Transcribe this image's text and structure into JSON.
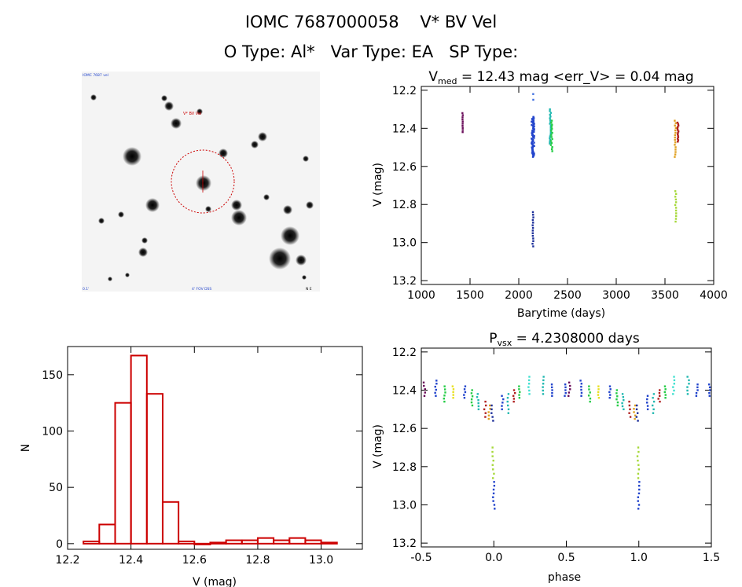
{
  "header": {
    "title": "IOMC 7687000058    V* BV Vel",
    "subtitle": "O Type: Al*   Var Type: EA   SP Type:"
  },
  "finding_chart": {
    "corner_top_left": "IOMC 7687 vel",
    "marker_label": "V* BV Vel",
    "bottom_left": "0.1'",
    "bottom_center": "4' FOV DSS",
    "bottom_right": "N E"
  },
  "chart_data": [
    {
      "id": "lightcurve",
      "type": "scatter",
      "title": "V_med = 12.43 mag <err_V> = 0.04 mag",
      "title_parts": {
        "main": "V",
        "sub": "med",
        "rest": " = 12.43 mag <err_V> = 0.04 mag"
      },
      "xlabel": "Barytime (days)",
      "ylabel": "V (mag)",
      "xlim": [
        1000,
        4000
      ],
      "ylim": [
        13.22,
        12.18
      ],
      "y_inverted": true,
      "xticks": [
        "1000",
        "1500",
        "2000",
        "2500",
        "3000",
        "3500",
        "4000"
      ],
      "yticks": [
        "12.2",
        "12.4",
        "12.6",
        "12.8",
        "13.0",
        "13.2"
      ],
      "series": [
        {
          "color": "#6a0d5a",
          "x_start": 1422,
          "x_end": 1426,
          "y_min": 12.32,
          "y_max": 12.42,
          "n": 10
        },
        {
          "color": "#2244cc",
          "x_start": 2130,
          "x_end": 2160,
          "y_min": 12.34,
          "y_max": 12.55,
          "n": 60
        },
        {
          "color": "#1d2f9a",
          "x_start": 2140,
          "x_end": 2150,
          "y_min": 12.84,
          "y_max": 13.02,
          "n": 14
        },
        {
          "color": "#3f6fe0",
          "x_start": 2148,
          "x_end": 2150,
          "y_min": 12.22,
          "y_max": 12.25,
          "n": 2
        },
        {
          "color": "#20b8b0",
          "x_start": 2318,
          "x_end": 2330,
          "y_min": 12.3,
          "y_max": 12.48,
          "n": 20
        },
        {
          "color": "#22cc44",
          "x_start": 2330,
          "x_end": 2345,
          "y_min": 12.36,
          "y_max": 12.52,
          "n": 16
        },
        {
          "color": "#e0a020",
          "x_start": 3600,
          "x_end": 3612,
          "y_min": 12.36,
          "y_max": 12.55,
          "n": 16
        },
        {
          "color": "#a6d83a",
          "x_start": 3605,
          "x_end": 3615,
          "y_min": 12.73,
          "y_max": 12.89,
          "n": 12
        },
        {
          "color": "#b02020",
          "x_start": 3625,
          "x_end": 3640,
          "y_min": 12.37,
          "y_max": 12.47,
          "n": 14
        }
      ]
    },
    {
      "id": "histogram",
      "type": "bar",
      "xlabel": "V (mag)",
      "ylabel": "N",
      "xlim": [
        12.2,
        13.13
      ],
      "ylim": [
        -5,
        175
      ],
      "xticks": [
        "12.2",
        "12.4",
        "12.6",
        "12.8",
        "13.0"
      ],
      "yticks": [
        "0",
        "50",
        "100",
        "150"
      ],
      "bin_edges": [
        12.25,
        12.3,
        12.35,
        12.4,
        12.45,
        12.5,
        12.55,
        12.6,
        12.65,
        12.7,
        12.75,
        12.8,
        12.85,
        12.9,
        12.95,
        13.0,
        13.05
      ],
      "values": [
        2,
        17,
        125,
        167,
        133,
        37,
        2,
        0,
        1,
        3,
        3,
        5,
        3,
        5,
        3,
        1
      ],
      "color": "#cc0000"
    },
    {
      "id": "phased",
      "type": "scatter",
      "title": "P_vsx = 4.2308000 days",
      "title_parts": {
        "main": "P",
        "sub": "vsx",
        "rest": " = 4.2308000 days"
      },
      "xlabel": "phase",
      "ylabel": "V (mag)",
      "xlim": [
        -0.5,
        1.5
      ],
      "ylim": [
        13.22,
        12.18
      ],
      "y_inverted": true,
      "xticks": [
        "-0.5",
        "0.0",
        "0.5",
        "1.0",
        "1.5"
      ],
      "yticks": [
        "12.2",
        "12.4",
        "12.6",
        "12.8",
        "13.0",
        "13.2"
      ],
      "groups": [
        {
          "color": "#6a0d5a",
          "phase": -0.48,
          "y_min": 12.36,
          "y_max": 12.43,
          "n": 5
        },
        {
          "color": "#2244cc",
          "phase": -0.4,
          "y_min": 12.35,
          "y_max": 12.43,
          "n": 6
        },
        {
          "color": "#22cc44",
          "phase": -0.34,
          "y_min": 12.38,
          "y_max": 12.46,
          "n": 6
        },
        {
          "color": "#e8e020",
          "phase": -0.28,
          "y_min": 12.38,
          "y_max": 12.44,
          "n": 5
        },
        {
          "color": "#2244cc",
          "phase": -0.2,
          "y_min": 12.38,
          "y_max": 12.44,
          "n": 5
        },
        {
          "color": "#22cc44",
          "phase": -0.15,
          "y_min": 12.4,
          "y_max": 12.48,
          "n": 6
        },
        {
          "color": "#20b8b0",
          "phase": -0.11,
          "y_min": 12.42,
          "y_max": 12.5,
          "n": 6
        },
        {
          "color": "#b02020",
          "phase": -0.06,
          "y_min": 12.46,
          "y_max": 12.54,
          "n": 5
        },
        {
          "color": "#e0a020",
          "phase": -0.03,
          "y_min": 12.48,
          "y_max": 12.55,
          "n": 5
        },
        {
          "color": "#1d2f9a",
          "phase": -0.01,
          "y_min": 12.48,
          "y_max": 12.56,
          "n": 5
        },
        {
          "color": "#a6d83a",
          "phase": -0.005,
          "y_min": 12.7,
          "y_max": 12.86,
          "n": 8
        },
        {
          "color": "#2244cc",
          "phase": 0.0,
          "y_min": 12.88,
          "y_max": 13.02,
          "n": 8
        },
        {
          "color": "#2244cc",
          "phase": 0.06,
          "y_min": 12.43,
          "y_max": 12.5,
          "n": 5
        },
        {
          "color": "#20b8b0",
          "phase": 0.1,
          "y_min": 12.42,
          "y_max": 12.52,
          "n": 6
        },
        {
          "color": "#b02020",
          "phase": 0.14,
          "y_min": 12.4,
          "y_max": 12.46,
          "n": 5
        },
        {
          "color": "#22cc44",
          "phase": 0.18,
          "y_min": 12.38,
          "y_max": 12.44,
          "n": 5
        },
        {
          "color": "#40e0d0",
          "phase": 0.24,
          "y_min": 12.33,
          "y_max": 12.42,
          "n": 6
        },
        {
          "color": "#20b8b0",
          "phase": 0.34,
          "y_min": 12.33,
          "y_max": 12.42,
          "n": 6
        },
        {
          "color": "#2244cc",
          "phase": 0.4,
          "y_min": 12.37,
          "y_max": 12.43,
          "n": 5
        },
        {
          "color": "#2244cc",
          "phase": 0.49,
          "y_min": 12.37,
          "y_max": 12.43,
          "n": 5
        },
        {
          "color": "#6a0d5a",
          "phase": 0.52,
          "y_min": 12.36,
          "y_max": 12.43,
          "n": 5
        },
        {
          "color": "#2244cc",
          "phase": 0.6,
          "y_min": 12.35,
          "y_max": 12.43,
          "n": 6
        },
        {
          "color": "#22cc44",
          "phase": 0.66,
          "y_min": 12.38,
          "y_max": 12.46,
          "n": 6
        },
        {
          "color": "#e8e020",
          "phase": 0.72,
          "y_min": 12.38,
          "y_max": 12.44,
          "n": 5
        },
        {
          "color": "#2244cc",
          "phase": 0.8,
          "y_min": 12.38,
          "y_max": 12.44,
          "n": 5
        },
        {
          "color": "#22cc44",
          "phase": 0.85,
          "y_min": 12.4,
          "y_max": 12.48,
          "n": 6
        },
        {
          "color": "#20b8b0",
          "phase": 0.89,
          "y_min": 12.42,
          "y_max": 12.5,
          "n": 6
        },
        {
          "color": "#b02020",
          "phase": 0.94,
          "y_min": 12.46,
          "y_max": 12.54,
          "n": 5
        },
        {
          "color": "#e0a020",
          "phase": 0.97,
          "y_min": 12.48,
          "y_max": 12.55,
          "n": 5
        },
        {
          "color": "#1d2f9a",
          "phase": 0.99,
          "y_min": 12.48,
          "y_max": 12.56,
          "n": 5
        },
        {
          "color": "#a6d83a",
          "phase": 0.995,
          "y_min": 12.7,
          "y_max": 12.86,
          "n": 8
        },
        {
          "color": "#2244cc",
          "phase": 1.0,
          "y_min": 12.88,
          "y_max": 13.02,
          "n": 8
        },
        {
          "color": "#2244cc",
          "phase": 1.06,
          "y_min": 12.43,
          "y_max": 12.5,
          "n": 5
        },
        {
          "color": "#20b8b0",
          "phase": 1.1,
          "y_min": 12.42,
          "y_max": 12.52,
          "n": 6
        },
        {
          "color": "#b02020",
          "phase": 1.14,
          "y_min": 12.4,
          "y_max": 12.46,
          "n": 5
        },
        {
          "color": "#22cc44",
          "phase": 1.18,
          "y_min": 12.38,
          "y_max": 12.44,
          "n": 5
        },
        {
          "color": "#40e0d0",
          "phase": 1.24,
          "y_min": 12.33,
          "y_max": 12.42,
          "n": 6
        },
        {
          "color": "#20b8b0",
          "phase": 1.34,
          "y_min": 12.33,
          "y_max": 12.42,
          "n": 6
        },
        {
          "color": "#2244cc",
          "phase": 1.4,
          "y_min": 12.37,
          "y_max": 12.43,
          "n": 5
        },
        {
          "color": "#2244cc",
          "phase": 1.49,
          "y_min": 12.37,
          "y_max": 12.43,
          "n": 5
        }
      ]
    }
  ]
}
